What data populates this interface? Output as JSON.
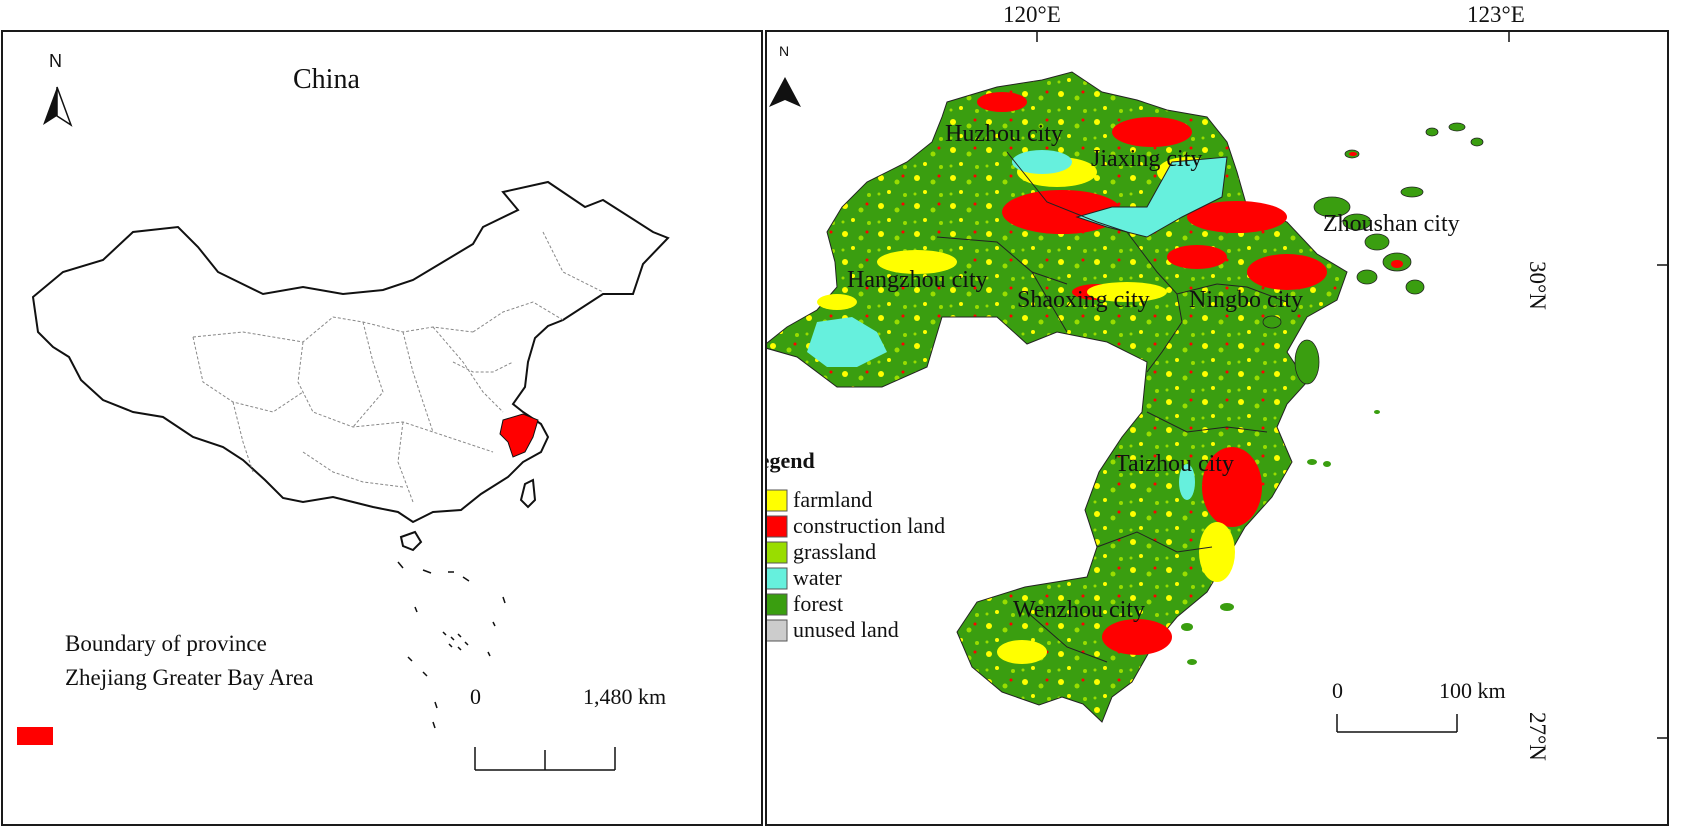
{
  "left_map": {
    "north_label": "N",
    "title": "China",
    "legend": {
      "boundary_label": "Boundary of province",
      "area_label": "Zhejiang Greater Bay Area",
      "area_color": "#ff0000"
    },
    "scale": {
      "start": "0",
      "end": "1,480 km"
    }
  },
  "right_map": {
    "north_label": "N",
    "lon_labels": [
      "120°E",
      "123°E"
    ],
    "lat_labels": [
      "30°N",
      "27°N"
    ],
    "cities": [
      "Huzhou city",
      "Jiaxing city",
      "Zhoushan city",
      "Hangzhou city",
      "Shaoxing city",
      "Ningbo city",
      "Taizhou city",
      "Wenzhou city"
    ],
    "legend": {
      "title": "Legend",
      "items": [
        {
          "label": "farmland",
          "color": "#ffff00"
        },
        {
          "label": "construction land",
          "color": "#ff0000"
        },
        {
          "label": "grassland",
          "color": "#99dd00"
        },
        {
          "label": "water",
          "color": "#66f0dd"
        },
        {
          "label": "forest",
          "color": "#3a9e10"
        },
        {
          "label": "unused land",
          "color": "#cccccc"
        }
      ]
    },
    "scale": {
      "start": "0",
      "end": "100 km"
    }
  }
}
